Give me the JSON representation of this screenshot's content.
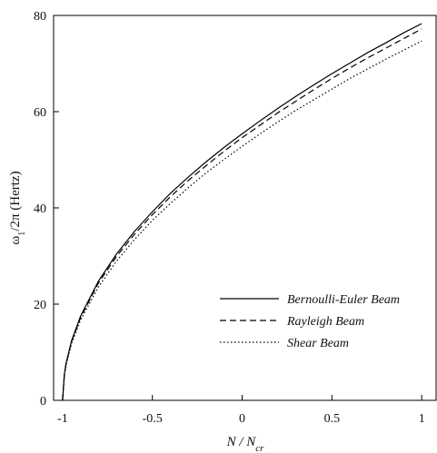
{
  "chart_data": {
    "type": "line",
    "title": "",
    "xlabel_main": "N / N",
    "xlabel_sub": "cr",
    "ylabel_pre": "ω",
    "ylabel_sub": "1",
    "ylabel_post": "/2π (Hertz)",
    "xlim": [
      -1.05,
      1.08
    ],
    "ylim": [
      0,
      80
    ],
    "xticks": [
      -1,
      -0.5,
      0,
      0.5,
      1
    ],
    "xtick_labels": [
      "-1",
      "-0.5",
      "0",
      "0.5",
      "1"
    ],
    "yticks": [
      0,
      20,
      40,
      60,
      80
    ],
    "ytick_labels": [
      "0",
      "20",
      "40",
      "60",
      "80"
    ],
    "grid": false,
    "legend_position": "lower-right",
    "x": [
      -1.0,
      -0.99,
      -0.98,
      -0.95,
      -0.9,
      -0.8,
      -0.7,
      -0.6,
      -0.5,
      -0.4,
      -0.3,
      -0.2,
      -0.1,
      0.0,
      0.1,
      0.2,
      0.3,
      0.4,
      0.5,
      0.6,
      0.7,
      0.8,
      0.9,
      1.0
    ],
    "series": [
      {
        "name": "Bernoulli-Euler Beam",
        "dash": "solid",
        "values": [
          0.0,
          5.5,
          7.8,
          12.4,
          17.5,
          24.8,
          30.4,
          35.1,
          39.2,
          43.0,
          46.4,
          49.6,
          52.6,
          55.4,
          58.1,
          60.7,
          63.2,
          65.6,
          67.9,
          70.1,
          72.3,
          74.3,
          76.4,
          78.3
        ]
      },
      {
        "name": "Rayleigh Beam",
        "dash": "dashed",
        "values": [
          0.0,
          5.4,
          7.7,
          12.2,
          17.2,
          24.4,
          29.9,
          34.5,
          38.6,
          42.3,
          45.7,
          48.8,
          51.8,
          54.6,
          57.2,
          59.8,
          62.2,
          64.6,
          66.9,
          69.1,
          71.2,
          73.2,
          75.2,
          77.2
        ]
      },
      {
        "name": "Shear Beam",
        "dash": "dotted",
        "values": [
          0.0,
          5.2,
          7.4,
          11.8,
          16.7,
          23.6,
          28.9,
          33.4,
          37.4,
          40.9,
          44.2,
          47.3,
          50.1,
          52.8,
          55.4,
          57.9,
          60.3,
          62.5,
          64.7,
          66.9,
          68.9,
          70.9,
          72.8,
          74.7
        ]
      }
    ]
  }
}
